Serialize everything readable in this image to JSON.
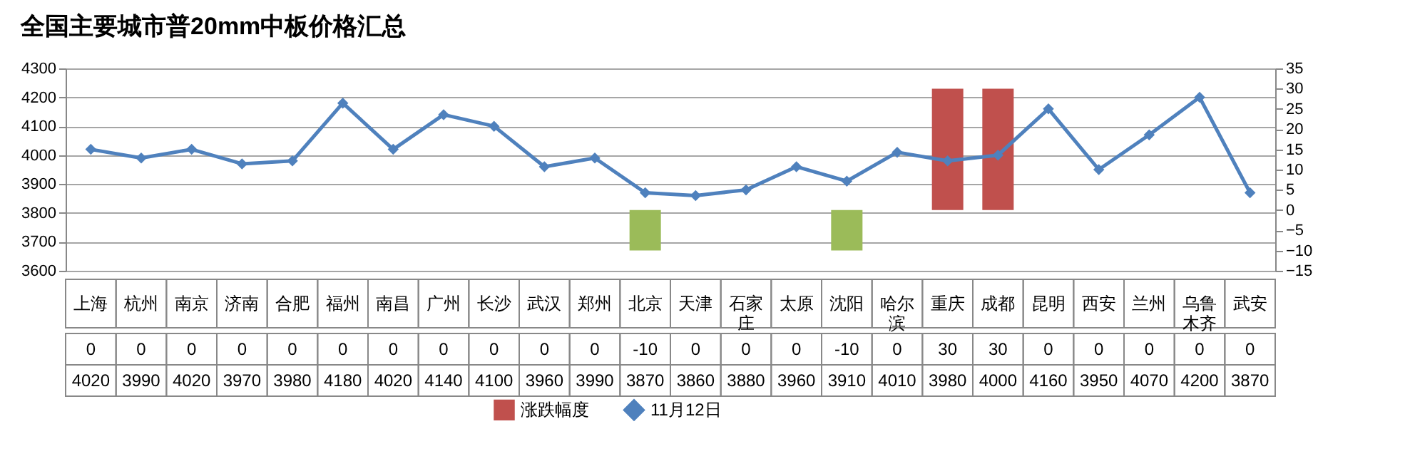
{
  "chart_data": {
    "type": "bar",
    "title": "全国主要城市普20mm中板价格汇总",
    "categories": [
      "上海",
      "杭州",
      "南京",
      "济南",
      "合肥",
      "福州",
      "南昌",
      "广州",
      "长沙",
      "武汉",
      "郑州",
      "北京",
      "天津",
      "石家庄",
      "太原",
      "沈阳",
      "哈尔滨",
      "重庆",
      "成都",
      "昆明",
      "西安",
      "兰州",
      "乌鲁木齐",
      "武安"
    ],
    "series": [
      {
        "name": "涨跌幅度",
        "axis": "y2",
        "color": "#c0504d",
        "colors": [
          "#c0504d",
          "#c0504d",
          "#c0504d",
          "#c0504d",
          "#c0504d",
          "#c0504d",
          "#c0504d",
          "#c0504d",
          "#c0504d",
          "#c0504d",
          "#c0504d",
          "#9bbb59",
          "#c0504d",
          "#c0504d",
          "#c0504d",
          "#9bbb59",
          "#c0504d",
          "#c0504d",
          "#c0504d",
          "#c0504d",
          "#c0504d",
          "#c0504d",
          "#c0504d",
          "#c0504d"
        ],
        "values": [
          0,
          0,
          0,
          0,
          0,
          0,
          0,
          0,
          0,
          0,
          0,
          -10,
          0,
          0,
          0,
          -10,
          0,
          30,
          30,
          0,
          0,
          0,
          0,
          0
        ]
      },
      {
        "name": "11月12日",
        "type": "line",
        "color": "#4f81bd",
        "values": [
          4020,
          3990,
          4020,
          3970,
          3980,
          4180,
          4020,
          4140,
          4100,
          3960,
          3990,
          3870,
          3860,
          3880,
          3960,
          3910,
          4010,
          3980,
          4000,
          4160,
          3950,
          4070,
          4200,
          3870
        ]
      }
    ],
    "ylim": [
      3600,
      4300
    ],
    "yticks": [
      3600,
      3700,
      3800,
      3900,
      4000,
      4100,
      4200,
      4300
    ],
    "y2lim": [
      -15,
      35
    ],
    "y2ticks": [
      -15,
      -10,
      -5,
      0,
      5,
      10,
      15,
      20,
      25,
      30,
      35
    ],
    "grid": "y",
    "legend": "bottom",
    "marker": "diamond",
    "data_labels": true
  }
}
